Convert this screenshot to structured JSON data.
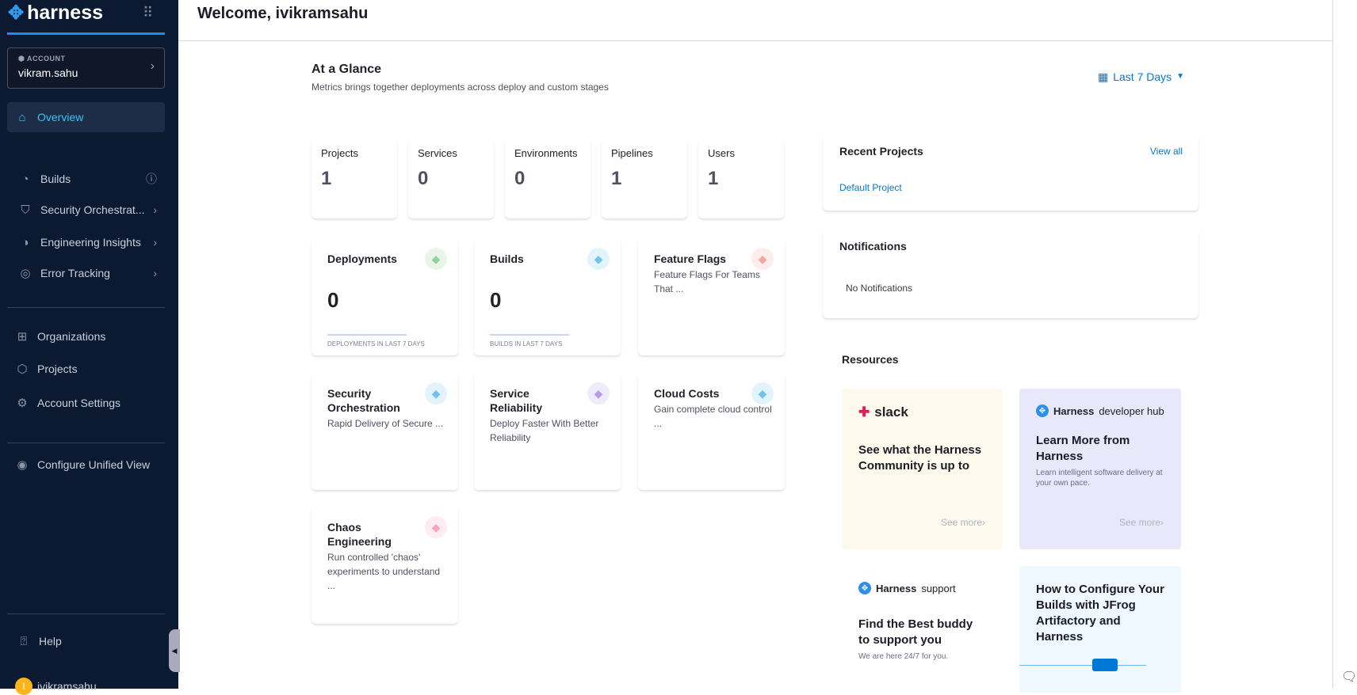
{
  "sidebar": {
    "brand": "harness",
    "account_label": "ACCOUNT",
    "account_name": "vikram.sahu",
    "items": [
      {
        "label": "Overview"
      },
      {
        "label": "Builds"
      },
      {
        "label": "Security Orchestrat..."
      },
      {
        "label": "Engineering Insights"
      },
      {
        "label": "Error Tracking"
      },
      {
        "label": "Organizations"
      },
      {
        "label": "Projects"
      },
      {
        "label": "Account Settings"
      },
      {
        "label": "Configure Unified View"
      },
      {
        "label": "Help"
      }
    ],
    "user": {
      "initial": "I",
      "name": "ivikramsahu"
    }
  },
  "header": {
    "title": "Welcome, ivikramsahu"
  },
  "glance": {
    "title": "At a Glance",
    "subtitle": "Metrics brings together deployments across deploy and custom stages",
    "range": "Last 7 Days"
  },
  "stats": [
    {
      "label": "Projects",
      "value": "1"
    },
    {
      "label": "Services",
      "value": "0"
    },
    {
      "label": "Environments",
      "value": "0"
    },
    {
      "label": "Pipelines",
      "value": "1"
    },
    {
      "label": "Users",
      "value": "1"
    }
  ],
  "modules": [
    {
      "title": "Deployments",
      "value": "0",
      "caption": "DEPLOYMENTS IN LAST 7 DAYS",
      "color": "#42ab45"
    },
    {
      "title": "Builds",
      "value": "0",
      "caption": "BUILDS IN LAST 7 DAYS",
      "color": "#0092e4"
    },
    {
      "title": "Feature Flags",
      "desc": "Feature Flags For Teams That ...",
      "color": "#ee5f54"
    },
    {
      "title": "Security Orchestration",
      "desc": "Rapid Delivery of Secure ...",
      "color": "#0092e4"
    },
    {
      "title": "Service Reliability",
      "desc": "Deploy Faster With Better Reliability",
      "color": "#7a4dce"
    },
    {
      "title": "Cloud Costs",
      "desc": "Gain complete cloud control ...",
      "color": "#0092e4"
    },
    {
      "title": "Chaos Engineering",
      "desc": "Run controlled 'chaos' experiments to understand ...",
      "color": "#ee5f8a"
    }
  ],
  "recent": {
    "title": "Recent Projects",
    "view_all": "View all",
    "items": [
      "Default Project"
    ]
  },
  "notifications": {
    "title": "Notifications",
    "empty": "No Notifications"
  },
  "resources": {
    "title": "Resources",
    "cards": [
      {
        "brand": "slack",
        "heading": "See what the Harness Community is up to",
        "more": "See more"
      },
      {
        "brand": "Harness",
        "brand_suffix": "developer hub",
        "heading": "Learn More from Harness",
        "sub": "Learn intelligent software delivery at your own pace.",
        "more": "See more"
      },
      {
        "brand": "Harness",
        "brand_suffix": "support",
        "heading": "Find the Best buddy to support you",
        "sub": "We are here 24/7 for you."
      },
      {
        "heading": "How to Configure Your Builds with JFrog Artifactory and Harness"
      }
    ]
  }
}
